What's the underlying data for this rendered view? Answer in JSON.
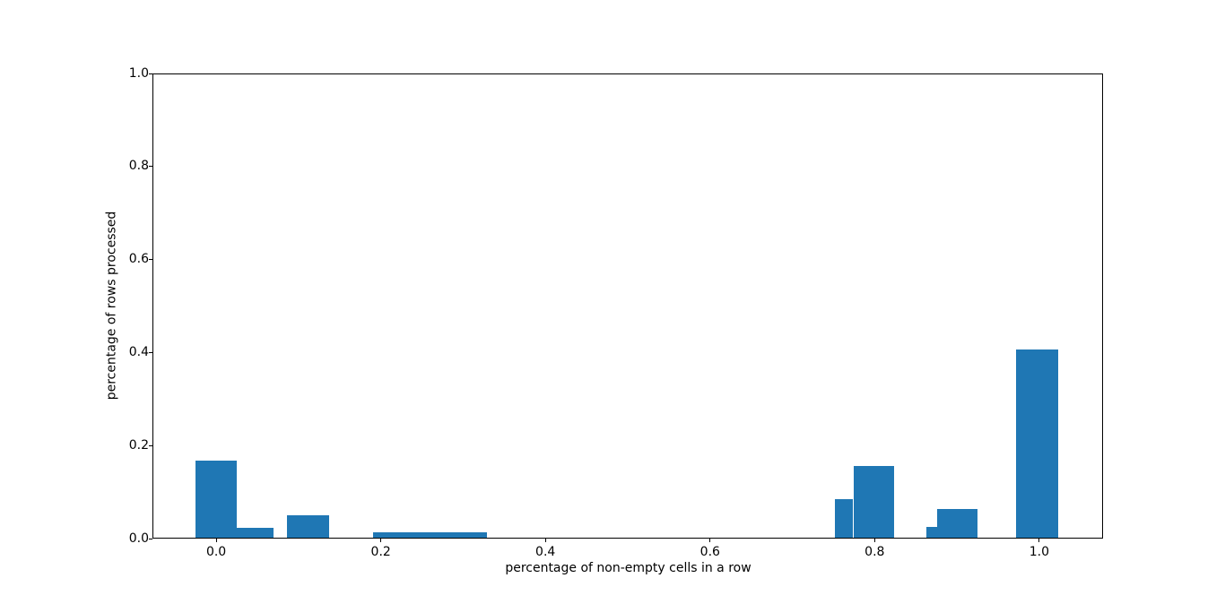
{
  "chart_data": {
    "type": "bar",
    "subtype": "histogram",
    "title": "",
    "xlabel": "percentage of non-empty cells in a row",
    "ylabel": "percentage of rows processed",
    "xlim": [
      -0.0775,
      1.0775
    ],
    "ylim": [
      0.0,
      1.0
    ],
    "x_ticks": [
      0.0,
      0.2,
      0.4,
      0.6,
      0.8,
      1.0
    ],
    "x_tick_labels": [
      "0.0",
      "0.2",
      "0.4",
      "0.6",
      "0.8",
      "1.0"
    ],
    "y_ticks": [
      0.0,
      0.2,
      0.4,
      0.6,
      0.8,
      1.0
    ],
    "y_tick_labels": [
      "0.0",
      "0.2",
      "0.4",
      "0.6",
      "0.8",
      "1.0"
    ],
    "grid": false,
    "legend": null,
    "bar_color": "#1f77b4",
    "bars": [
      {
        "x_left": -0.025,
        "x_right": 0.025,
        "height": 0.168
      },
      {
        "x_left": 0.025,
        "x_right": 0.07,
        "height": 0.024
      },
      {
        "x_left": 0.086,
        "x_right": 0.137,
        "height": 0.05
      },
      {
        "x_left": 0.19,
        "x_right": 0.329,
        "height": 0.013
      },
      {
        "x_left": 0.752,
        "x_right": 0.774,
        "height": 0.085
      },
      {
        "x_left": 0.774,
        "x_right": 0.823,
        "height": 0.157
      },
      {
        "x_left": 0.863,
        "x_right": 0.876,
        "height": 0.025
      },
      {
        "x_left": 0.876,
        "x_right": 0.925,
        "height": 0.064
      },
      {
        "x_left": 0.972,
        "x_right": 1.023,
        "height": 0.407
      }
    ]
  }
}
